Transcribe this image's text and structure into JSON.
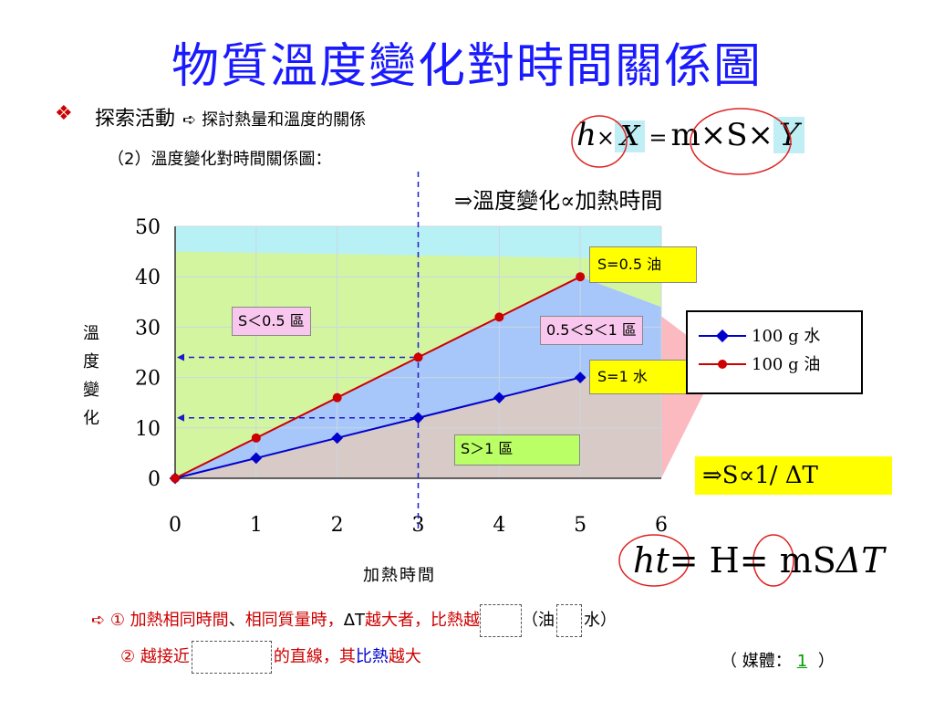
{
  "title": "物質溫度變化對時間關係圖",
  "activity": {
    "bullet": "❖",
    "label": "探索活動",
    "arrow": "➪",
    "text": "探討熱量和溫度的關係"
  },
  "subtitle": "（2）溫度變化對時間關係圖：",
  "proportion_time": "⇒溫度變化∝加熱時間",
  "formula_top": {
    "h": "h",
    "times1": "×",
    "x": "X",
    "eq": "=",
    "ms": "m×S×",
    "y": "Y"
  },
  "formula_bottom": {
    "ht": "ht",
    "rest": "= H= mS",
    "dt": "ΔT"
  },
  "result": "⇒S∝1/ ΔT",
  "region_labels": {
    "s_lt_05": "S＜0.5 區",
    "s_between": "0.5＜S＜1 區",
    "s_gt_1": "S＞1 區",
    "s_oil": "S=0.5 油",
    "s_water": "S=1 水"
  },
  "notes": {
    "line1_arrow": "➪",
    "line1_a": "① 加熱相同時間",
    "line1_sep": "、",
    "line1_b": "相同質量時，",
    "line1_dt": "ΔT",
    "line1_c": "越大者，比熱越",
    "line1_d": "（油",
    "line1_e": "水）",
    "line2_a": "② 越接近",
    "line2_b": "的直線，其",
    "line2_c": "比熱",
    "line2_d": "越大"
  },
  "media": {
    "prefix": "（ 媒體：",
    "answer": "1",
    "suffix": " ）"
  },
  "colors": {
    "title": "#1a1aff",
    "water": "#0000cc",
    "oil": "#cc0000",
    "region_green": "#d4f5a0",
    "region_cyan": "#b7f1f5",
    "region_blue": "#a7c6fa",
    "region_brown": "#d8cac6",
    "label_pink": "#f9c7ee",
    "label_yellow": "#ffff00",
    "label_green": "#bbff66"
  },
  "chart_data": {
    "type": "line",
    "x": [
      0,
      1,
      2,
      3,
      4,
      5
    ],
    "series": [
      {
        "name": "100 g 水",
        "values": [
          0,
          4,
          8,
          12,
          16,
          20
        ]
      },
      {
        "name": "100 g 油",
        "values": [
          0,
          8,
          16,
          24,
          32,
          40
        ]
      }
    ],
    "xlabel": "加熱時間",
    "ylabel": "溫度變化",
    "xlim": [
      0,
      6
    ],
    "ylim": [
      0,
      50
    ],
    "xticks": [
      "0",
      "1",
      "2",
      "3",
      "4",
      "5",
      "6"
    ],
    "yticks": [
      "0",
      "10",
      "20",
      "30",
      "40",
      "50"
    ],
    "grid": true,
    "legend": "right",
    "guides": {
      "x": 3,
      "y_values": [
        12,
        24
      ]
    }
  }
}
